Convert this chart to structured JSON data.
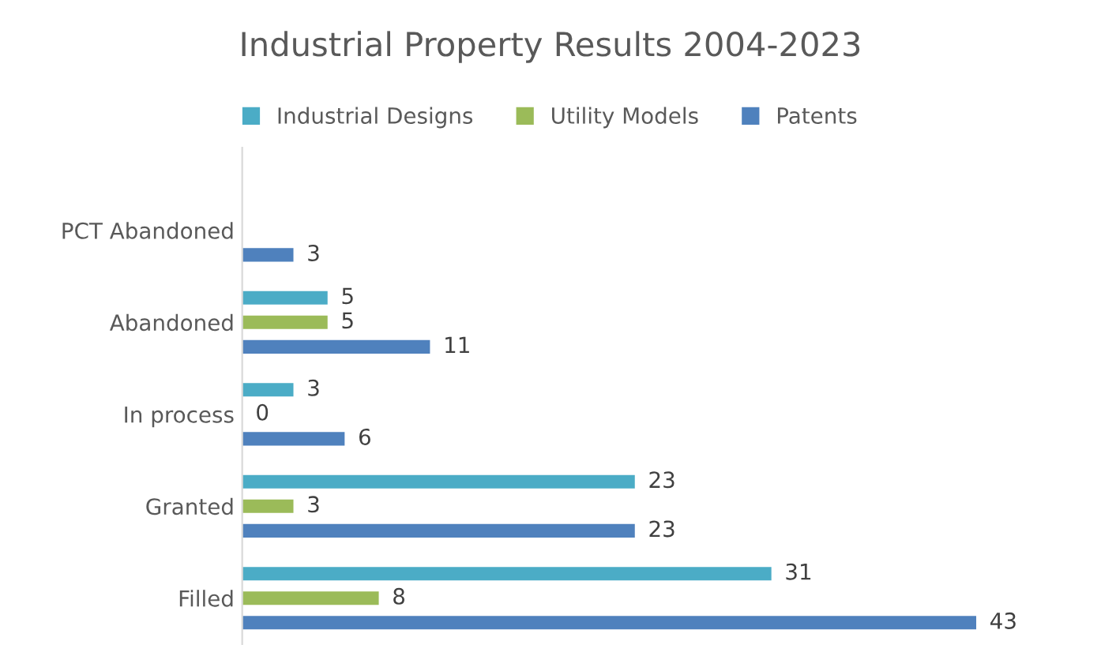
{
  "chart_data": {
    "type": "bar",
    "orientation": "horizontal",
    "title": "Industrial Property Results 2004-2023",
    "categories": [
      "PCT Abandoned",
      "Abandoned",
      "In process",
      "Granted",
      "Filled"
    ],
    "series": [
      {
        "name": "Industrial Designs",
        "color": "#4bacc6",
        "values": [
          null,
          5,
          3,
          23,
          31
        ]
      },
      {
        "name": "Utility Models",
        "color": "#9bbb59",
        "values": [
          null,
          5,
          0,
          3,
          8
        ]
      },
      {
        "name": "Patents",
        "color": "#4f81bd",
        "values": [
          3,
          11,
          6,
          23,
          43
        ]
      }
    ],
    "data_labels": true,
    "legend": "top",
    "grid": false,
    "tick_labels": "y"
  }
}
